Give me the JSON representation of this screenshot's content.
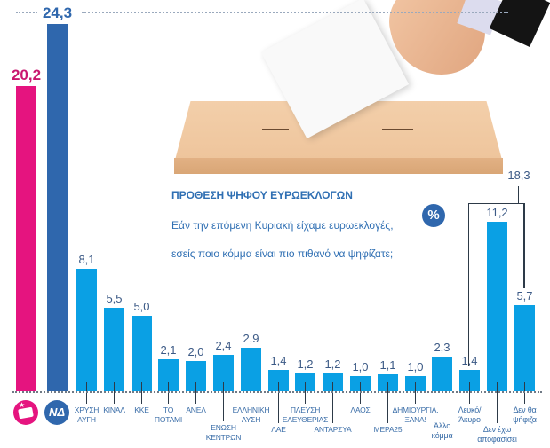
{
  "chart_data": {
    "type": "bar",
    "title": "ΠΡΟΘΕΣΗ ΨΗΦΟΥ ΕΥΡΩΕΚΛΟΓΩΝ",
    "subtitle": "Εάν την επόμενη Κυριακή είχαμε ευρωεκλογές, εσείς ποιο κόμμα είναι πιο πιθανό να ψηφίζατε;",
    "unit_badge": "%",
    "xlabel": "",
    "ylabel": "%",
    "ylim": [
      0,
      25
    ],
    "grid": false,
    "categories": [
      "ΣΥΡΙΖΑ",
      "ΝΔ",
      "ΧΡΥΣΗ ΑΥΓΗ",
      "ΚΙΝΑΛ",
      "ΚΚΕ",
      "ΤΟ ΠΟΤΑΜΙ",
      "ΑΝΕΛ",
      "ΕΝΩΣΗ ΚΕΝΤΡΩΝ",
      "ΕΛΛΗΝΙΚΗ ΛΥΣΗ",
      "ΛΑΕ",
      "ΠΛΕΥΣΗ ΕΛΕΥΘΕΡΙΑΣ",
      "ΑΝΤΑΡΣΥΑ",
      "ΛΑΟΣ",
      "ΜΕΡΑ25",
      "ΔΗΜΙΟΥΡΓΙΑ, ΞΑΝΑ!",
      "Άλλο κόμμα",
      "Λευκό/Άκυρο",
      "Δεν έχω αποφασίσει",
      "Δεν θα ψήφιζα"
    ],
    "values": [
      20.2,
      24.3,
      8.1,
      5.5,
      5.0,
      2.1,
      2.0,
      2.4,
      2.9,
      1.4,
      1.2,
      1.2,
      1.0,
      1.1,
      1.0,
      2.3,
      1.4,
      11.2,
      5.7
    ],
    "annotations": [
      {
        "type": "bracket",
        "spans": [
          "Λευκό/Άκυρο",
          "Δεν έχω αποφασίσει",
          "Δεν θα ψήφιζα"
        ],
        "label": "18,3",
        "value": 18.3
      }
    ],
    "legend": "party logos under first two bars (SYRIZA pink, ND blue)"
  },
  "colors": {
    "syriza": "#e5147f",
    "nd": "#2f67ad",
    "others": "#0aa0e4",
    "value_text": "#3c5a86",
    "label_text": "#3b6ea8",
    "title_text": "#2f6fb3"
  },
  "bars": [
    {
      "value_label": "20,2",
      "axis_label": "",
      "value": 20.2,
      "color": "#e5147f"
    },
    {
      "value_label": "24,3",
      "axis_label": "",
      "value": 24.3,
      "color": "#2f67ad"
    },
    {
      "value_label": "8,1",
      "axis_label": "ΧΡΥΣΗ\nΑΥΓΗ",
      "value": 8.1,
      "color": "#0aa0e4"
    },
    {
      "value_label": "5,5",
      "axis_label": "ΚΙΝΑΛ",
      "value": 5.5,
      "color": "#0aa0e4"
    },
    {
      "value_label": "5,0",
      "axis_label": "ΚΚΕ",
      "value": 5.0,
      "color": "#0aa0e4"
    },
    {
      "value_label": "2,1",
      "axis_label": "ΤΟ\nΠΟΤΑΜΙ",
      "value": 2.1,
      "color": "#0aa0e4"
    },
    {
      "value_label": "2,0",
      "axis_label": "ΑΝΕΛ",
      "value": 2.0,
      "color": "#0aa0e4"
    },
    {
      "value_label": "2,4",
      "axis_label": "ΕΝΩΣΗ\nΚΕΝΤΡΩΝ",
      "value": 2.4,
      "color": "#0aa0e4"
    },
    {
      "value_label": "2,9",
      "axis_label": "ΕΛΛΗΝΙΚΗ\nΛΥΣΗ",
      "value": 2.9,
      "color": "#0aa0e4"
    },
    {
      "value_label": "1,4",
      "axis_label": "ΛΑΕ",
      "value": 1.4,
      "color": "#0aa0e4"
    },
    {
      "value_label": "1,2",
      "axis_label": "ΠΛΕΥΣΗ\nΕΛΕΥΘΕΡΙΑΣ",
      "value": 1.2,
      "color": "#0aa0e4"
    },
    {
      "value_label": "1,2",
      "axis_label": "ΑΝΤΑΡΣΥΑ",
      "value": 1.2,
      "color": "#0aa0e4"
    },
    {
      "value_label": "1,0",
      "axis_label": "ΛΑΟΣ",
      "value": 1.0,
      "color": "#0aa0e4"
    },
    {
      "value_label": "1,1",
      "axis_label": "ΜΕΡΑ25",
      "value": 1.1,
      "color": "#0aa0e4"
    },
    {
      "value_label": "1,0",
      "axis_label": "ΔΗΜΙΟΥΡΓΙΑ,\nΞΑΝΑ!",
      "value": 1.0,
      "color": "#0aa0e4"
    },
    {
      "value_label": "2,3",
      "axis_label": "Άλλο\nκόμμα",
      "value": 2.3,
      "color": "#0aa0e4"
    },
    {
      "value_label": "1,4",
      "axis_label": "Λευκό/\nΆκυρο",
      "value": 1.4,
      "color": "#0aa0e4"
    },
    {
      "value_label": "11,2",
      "axis_label": "Δεν έχω\nαποφασίσει",
      "value": 11.2,
      "color": "#0aa0e4"
    },
    {
      "value_label": "5,7",
      "axis_label": "Δεν θα\nψήφιζα",
      "value": 5.7,
      "color": "#0aa0e4"
    }
  ],
  "label_offsets": [
    0,
    0,
    0,
    -8,
    0,
    0,
    -8,
    10,
    -8,
    12,
    -8,
    12,
    -8,
    12,
    -8,
    8,
    -8,
    12,
    -8
  ],
  "bracket_label": "18,3",
  "logos": [
    {
      "name": "syriza-logo",
      "glyph": "★",
      "color": "#e5147f"
    },
    {
      "name": "nd-logo",
      "glyph": "ΝΔ",
      "color": "#2f67ad"
    }
  ]
}
